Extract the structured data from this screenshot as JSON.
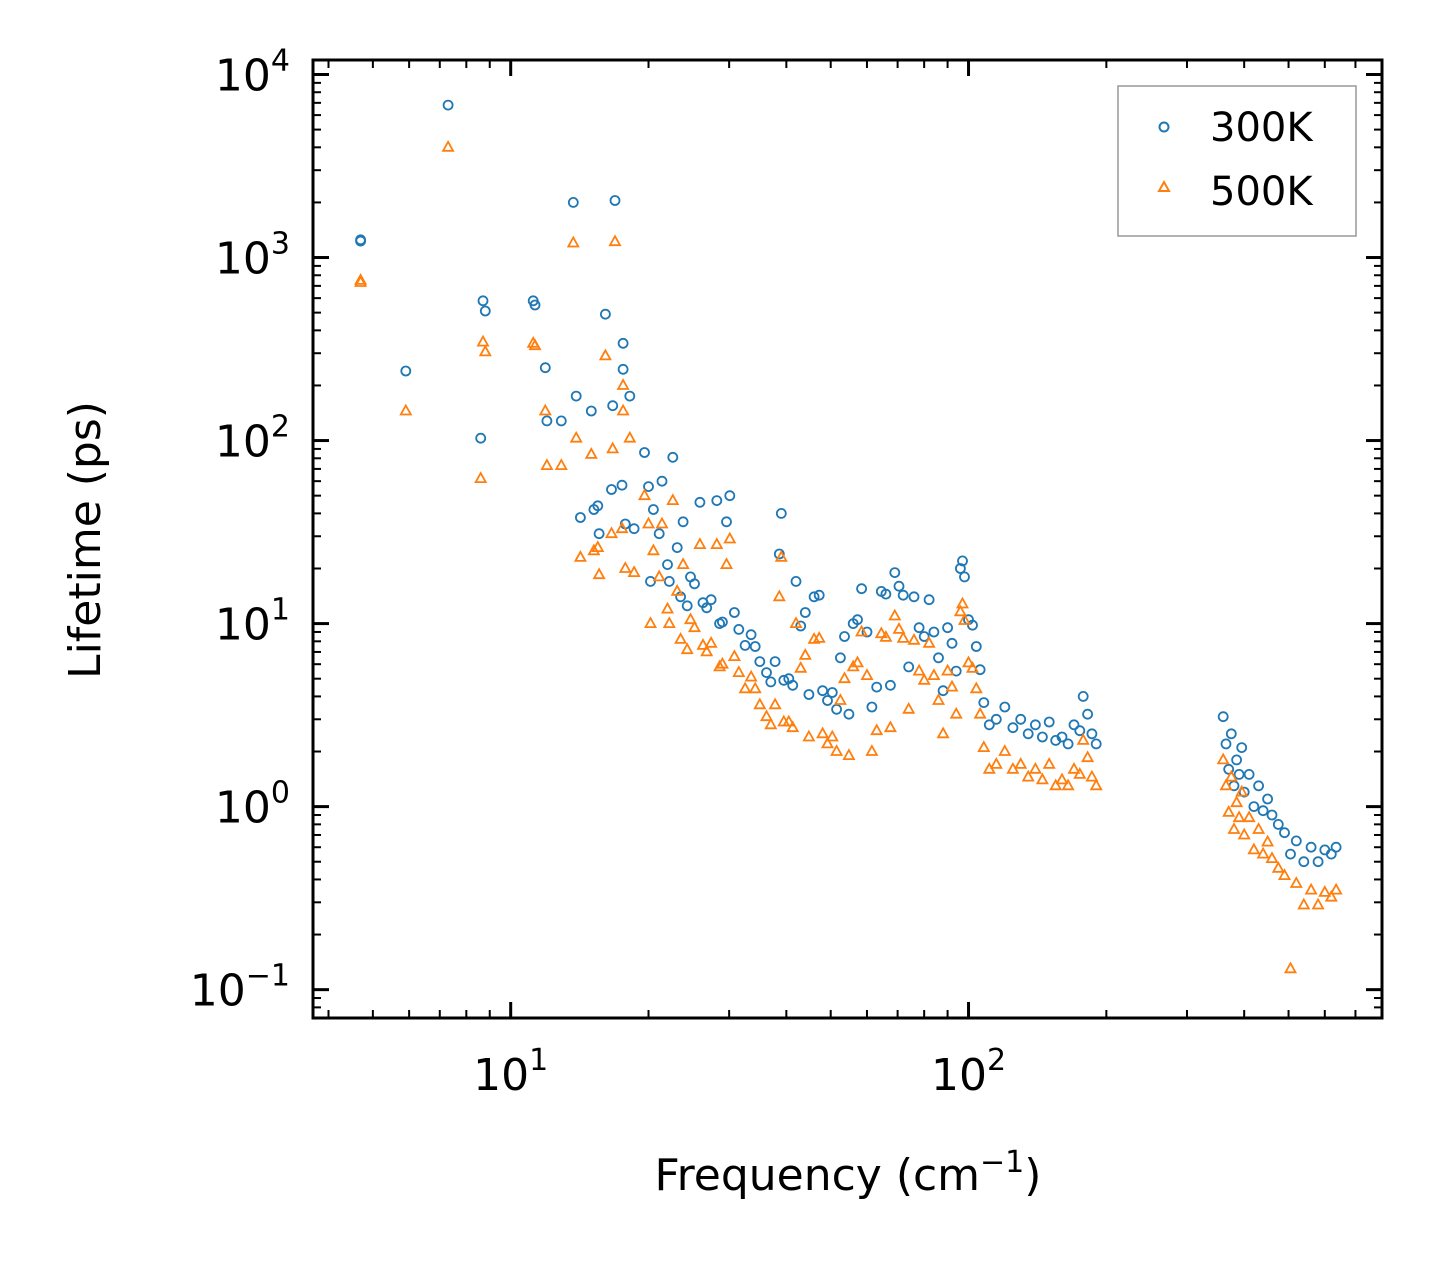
{
  "chart_data": {
    "type": "scatter",
    "title": "",
    "xlabel": "Frequency (cm",
    "xlabel_sup": "−1",
    "xlabel_end": ")",
    "ylabel": "Lifetime (ps)",
    "xscale": "log",
    "yscale": "log",
    "xlim": [
      3.7,
      800
    ],
    "ylim": [
      0.07,
      12000
    ],
    "x_ticks": [
      {
        "value": 10,
        "base": "10",
        "exp": "1"
      },
      {
        "value": 100,
        "base": "10",
        "exp": "2"
      }
    ],
    "y_ticks": [
      {
        "value": 0.1,
        "base": "10",
        "exp": "−1"
      },
      {
        "value": 1,
        "base": "10",
        "exp": "0"
      },
      {
        "value": 10,
        "base": "10",
        "exp": "1"
      },
      {
        "value": 100,
        "base": "10",
        "exp": "2"
      },
      {
        "value": 1000,
        "base": "10",
        "exp": "3"
      },
      {
        "value": 10000,
        "base": "10",
        "exp": "4"
      }
    ],
    "legend_position": "top-right",
    "series": [
      {
        "name": "300K",
        "marker": "circle",
        "color": "#1f77b4",
        "points": [
          [
            4.7,
            1230
          ],
          [
            4.7,
            1250
          ],
          [
            5.9,
            240
          ],
          [
            7.3,
            6800
          ],
          [
            8.6,
            103
          ],
          [
            8.7,
            580
          ],
          [
            8.8,
            510
          ],
          [
            11.2,
            580
          ],
          [
            11.3,
            550
          ],
          [
            11.9,
            250
          ],
          [
            12.0,
            128
          ],
          [
            12.9,
            128
          ],
          [
            13.7,
            2000
          ],
          [
            13.9,
            175
          ],
          [
            14.2,
            38
          ],
          [
            15.0,
            145
          ],
          [
            15.2,
            42
          ],
          [
            15.5,
            44
          ],
          [
            15.6,
            31
          ],
          [
            16.1,
            490
          ],
          [
            16.6,
            54
          ],
          [
            16.7,
            155
          ],
          [
            16.9,
            2050
          ],
          [
            17.5,
            57
          ],
          [
            17.6,
            340
          ],
          [
            17.6,
            245
          ],
          [
            17.8,
            35
          ],
          [
            18.2,
            175
          ],
          [
            18.6,
            33
          ],
          [
            19.6,
            86
          ],
          [
            20.0,
            56
          ],
          [
            20.2,
            17
          ],
          [
            20.5,
            42
          ],
          [
            21.1,
            31
          ],
          [
            21.4,
            60
          ],
          [
            22.0,
            21
          ],
          [
            22.2,
            17
          ],
          [
            22.6,
            81
          ],
          [
            23.1,
            26
          ],
          [
            23.5,
            14
          ],
          [
            23.8,
            36
          ],
          [
            24.3,
            12.5
          ],
          [
            24.7,
            18
          ],
          [
            25.2,
            16.5
          ],
          [
            25.9,
            46
          ],
          [
            26.3,
            13
          ],
          [
            26.8,
            12.2
          ],
          [
            27.4,
            13.5
          ],
          [
            28.2,
            47
          ],
          [
            28.6,
            10
          ],
          [
            29.0,
            10.2
          ],
          [
            29.6,
            36
          ],
          [
            30.1,
            50
          ],
          [
            30.8,
            11.5
          ],
          [
            31.5,
            9.3
          ],
          [
            32.5,
            7.6
          ],
          [
            33.5,
            8.7
          ],
          [
            34.2,
            7.5
          ],
          [
            35.0,
            6.2
          ],
          [
            36.2,
            5.4
          ],
          [
            37.0,
            4.8
          ],
          [
            37.8,
            6.2
          ],
          [
            38.6,
            24
          ],
          [
            39.0,
            40
          ],
          [
            39.5,
            4.9
          ],
          [
            40.5,
            5.0
          ],
          [
            41.3,
            4.6
          ],
          [
            42.0,
            17
          ],
          [
            43.0,
            9.7
          ],
          [
            44.0,
            11.5
          ],
          [
            44.8,
            4.1
          ],
          [
            46.0,
            14
          ],
          [
            47.2,
            14.3
          ],
          [
            48.0,
            4.3
          ],
          [
            49.2,
            3.8
          ],
          [
            50.4,
            4.2
          ],
          [
            51.5,
            3.4
          ],
          [
            52.5,
            6.5
          ],
          [
            53.6,
            8.5
          ],
          [
            54.8,
            3.2
          ],
          [
            56.0,
            10
          ],
          [
            57.2,
            10.5
          ],
          [
            58.4,
            15.5
          ],
          [
            60.0,
            9
          ],
          [
            61.5,
            3.5
          ],
          [
            63.0,
            4.5
          ],
          [
            64.5,
            15
          ],
          [
            66.0,
            14.5
          ],
          [
            67.5,
            4.6
          ],
          [
            69.0,
            19
          ],
          [
            70.5,
            16
          ],
          [
            72.0,
            14.3
          ],
          [
            74.0,
            5.8
          ],
          [
            76.0,
            14
          ],
          [
            78.0,
            9.5
          ],
          [
            80.0,
            8.5
          ],
          [
            82.0,
            13.5
          ],
          [
            84.0,
            9
          ],
          [
            86.0,
            6.5
          ],
          [
            88.0,
            4.3
          ],
          [
            90.0,
            9.5
          ],
          [
            92.0,
            7.8
          ],
          [
            94.0,
            5.5
          ],
          [
            96.0,
            20
          ],
          [
            97.0,
            22
          ],
          [
            98.0,
            18
          ],
          [
            100.0,
            10.5
          ],
          [
            102.0,
            9.8
          ],
          [
            104.0,
            7.5
          ],
          [
            106.0,
            5.6
          ],
          [
            108.0,
            3.7
          ],
          [
            111.0,
            2.8
          ],
          [
            115.0,
            3.0
          ],
          [
            120.0,
            3.5
          ],
          [
            125.0,
            2.7
          ],
          [
            130.0,
            3.0
          ],
          [
            135.0,
            2.5
          ],
          [
            140.0,
            2.8
          ],
          [
            145.0,
            2.4
          ],
          [
            150.0,
            2.9
          ],
          [
            155.0,
            2.3
          ],
          [
            160.0,
            2.4
          ],
          [
            165.0,
            2.2
          ],
          [
            170.0,
            2.8
          ],
          [
            175.0,
            2.6
          ],
          [
            178.0,
            4.0
          ],
          [
            182.0,
            3.2
          ],
          [
            186.0,
            2.5
          ],
          [
            190.0,
            2.2
          ],
          [
            360.0,
            3.1
          ],
          [
            365.0,
            2.2
          ],
          [
            370.0,
            1.6
          ],
          [
            375.0,
            2.5
          ],
          [
            380.0,
            1.3
          ],
          [
            385.0,
            1.8
          ],
          [
            390.0,
            1.5
          ],
          [
            395.0,
            2.1
          ],
          [
            400.0,
            1.2
          ],
          [
            410.0,
            1.5
          ],
          [
            420.0,
            1.0
          ],
          [
            430.0,
            1.3
          ],
          [
            440.0,
            0.95
          ],
          [
            450.0,
            1.1
          ],
          [
            460.0,
            0.9
          ],
          [
            475.0,
            0.8
          ],
          [
            490.0,
            0.72
          ],
          [
            505.0,
            0.55
          ],
          [
            520.0,
            0.65
          ],
          [
            540.0,
            0.5
          ],
          [
            560.0,
            0.6
          ],
          [
            580.0,
            0.5
          ],
          [
            600.0,
            0.58
          ],
          [
            620.0,
            0.55
          ],
          [
            635.0,
            0.6
          ]
        ]
      },
      {
        "name": "500K",
        "marker": "triangle",
        "color": "#ff7f0e",
        "points": [
          [
            4.7,
            730
          ],
          [
            4.7,
            750
          ],
          [
            5.9,
            145
          ],
          [
            7.3,
            4000
          ],
          [
            8.6,
            62
          ],
          [
            8.7,
            345
          ],
          [
            8.8,
            305
          ],
          [
            11.2,
            340
          ],
          [
            11.3,
            330
          ],
          [
            11.9,
            145
          ],
          [
            12.0,
            73
          ],
          [
            12.9,
            73
          ],
          [
            13.7,
            1200
          ],
          [
            13.9,
            103
          ],
          [
            14.2,
            23
          ],
          [
            15.0,
            84
          ],
          [
            15.2,
            25
          ],
          [
            15.5,
            26
          ],
          [
            15.6,
            18.5
          ],
          [
            16.1,
            290
          ],
          [
            16.6,
            31
          ],
          [
            16.7,
            90
          ],
          [
            16.9,
            1220
          ],
          [
            17.5,
            33
          ],
          [
            17.6,
            200
          ],
          [
            17.6,
            145
          ],
          [
            17.8,
            20
          ],
          [
            18.2,
            103
          ],
          [
            18.6,
            19
          ],
          [
            19.6,
            50
          ],
          [
            20.0,
            35
          ],
          [
            20.2,
            10
          ],
          [
            20.5,
            25
          ],
          [
            21.1,
            18
          ],
          [
            21.4,
            35
          ],
          [
            22.0,
            12
          ],
          [
            22.2,
            10
          ],
          [
            22.6,
            47
          ],
          [
            23.1,
            15
          ],
          [
            23.5,
            8.2
          ],
          [
            23.8,
            21
          ],
          [
            24.3,
            7.2
          ],
          [
            24.7,
            10.5
          ],
          [
            25.2,
            9.5
          ],
          [
            25.9,
            27
          ],
          [
            26.3,
            7.6
          ],
          [
            26.8,
            7.0
          ],
          [
            27.4,
            7.8
          ],
          [
            28.2,
            27
          ],
          [
            28.6,
            5.8
          ],
          [
            29.0,
            6.0
          ],
          [
            29.6,
            21
          ],
          [
            30.1,
            29
          ],
          [
            30.8,
            6.6
          ],
          [
            31.5,
            5.4
          ],
          [
            32.5,
            4.4
          ],
          [
            33.5,
            5.1
          ],
          [
            34.2,
            4.4
          ],
          [
            35.0,
            3.6
          ],
          [
            36.2,
            3.1
          ],
          [
            37.0,
            2.8
          ],
          [
            37.8,
            3.6
          ],
          [
            38.6,
            14
          ],
          [
            39.0,
            23
          ],
          [
            39.5,
            2.9
          ],
          [
            40.5,
            2.9
          ],
          [
            41.3,
            2.7
          ],
          [
            42.0,
            10
          ],
          [
            43.0,
            5.7
          ],
          [
            44.0,
            6.7
          ],
          [
            44.8,
            2.4
          ],
          [
            46.0,
            8.2
          ],
          [
            47.2,
            8.3
          ],
          [
            48.0,
            2.5
          ],
          [
            49.2,
            2.2
          ],
          [
            50.4,
            2.4
          ],
          [
            51.5,
            2.0
          ],
          [
            52.5,
            3.8
          ],
          [
            53.6,
            5.0
          ],
          [
            54.8,
            1.9
          ],
          [
            56.0,
            5.8
          ],
          [
            57.2,
            6.1
          ],
          [
            58.4,
            9.0
          ],
          [
            60.0,
            5.2
          ],
          [
            61.5,
            2.0
          ],
          [
            63.0,
            2.6
          ],
          [
            64.5,
            8.8
          ],
          [
            66.0,
            8.4
          ],
          [
            67.5,
            2.7
          ],
          [
            69.0,
            11
          ],
          [
            70.5,
            9.3
          ],
          [
            72.0,
            8.3
          ],
          [
            74.0,
            3.4
          ],
          [
            76.0,
            8.1
          ],
          [
            78.0,
            5.5
          ],
          [
            80.0,
            4.9
          ],
          [
            82.0,
            7.8
          ],
          [
            84.0,
            5.2
          ],
          [
            86.0,
            3.8
          ],
          [
            88.0,
            2.5
          ],
          [
            90.0,
            5.5
          ],
          [
            92.0,
            4.5
          ],
          [
            94.0,
            3.2
          ],
          [
            96.0,
            11.6
          ],
          [
            97.0,
            12.8
          ],
          [
            98.0,
            10.4
          ],
          [
            100.0,
            6.1
          ],
          [
            102.0,
            5.7
          ],
          [
            104.0,
            4.4
          ],
          [
            106.0,
            3.2
          ],
          [
            108.0,
            2.1
          ],
          [
            111.0,
            1.6
          ],
          [
            115.0,
            1.7
          ],
          [
            120.0,
            2.0
          ],
          [
            125.0,
            1.6
          ],
          [
            130.0,
            1.7
          ],
          [
            135.0,
            1.45
          ],
          [
            140.0,
            1.6
          ],
          [
            145.0,
            1.4
          ],
          [
            150.0,
            1.7
          ],
          [
            155.0,
            1.3
          ],
          [
            160.0,
            1.4
          ],
          [
            165.0,
            1.3
          ],
          [
            170.0,
            1.6
          ],
          [
            175.0,
            1.5
          ],
          [
            178.0,
            2.3
          ],
          [
            182.0,
            1.85
          ],
          [
            186.0,
            1.45
          ],
          [
            190.0,
            1.3
          ],
          [
            360.0,
            1.8
          ],
          [
            365.0,
            1.3
          ],
          [
            370.0,
            0.93
          ],
          [
            375.0,
            1.45
          ],
          [
            380.0,
            0.75
          ],
          [
            385.0,
            1.05
          ],
          [
            390.0,
            0.87
          ],
          [
            395.0,
            1.2
          ],
          [
            400.0,
            0.7
          ],
          [
            410.0,
            0.87
          ],
          [
            420.0,
            0.58
          ],
          [
            430.0,
            0.75
          ],
          [
            440.0,
            0.55
          ],
          [
            450.0,
            0.64
          ],
          [
            460.0,
            0.52
          ],
          [
            475.0,
            0.46
          ],
          [
            490.0,
            0.42
          ],
          [
            505.0,
            0.13
          ],
          [
            520.0,
            0.38
          ],
          [
            540.0,
            0.29
          ],
          [
            560.0,
            0.35
          ],
          [
            580.0,
            0.29
          ],
          [
            600.0,
            0.34
          ],
          [
            620.0,
            0.32
          ],
          [
            635.0,
            0.35
          ]
        ]
      }
    ]
  }
}
